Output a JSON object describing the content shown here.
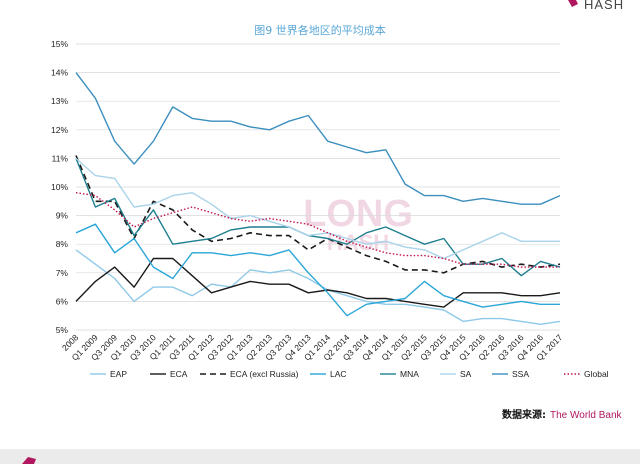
{
  "brand": {
    "logo_text": "HASH",
    "watermark_line1": "LONG",
    "watermark_line2": "HASH"
  },
  "source": {
    "label": "数据来源:",
    "value": "The World Bank"
  },
  "colors": {
    "EAP": "#8ec9e8",
    "ECA": "#1a1a1a",
    "ECA (excl Russia)": "#1a1a1a",
    "LAC": "#2aa6d8",
    "MNA": "#1e7f8f",
    "SA": "#a9d3ea",
    "SSA": "#3c8fbf",
    "Global": "#c0144f",
    "grid": "#d9d9d9",
    "title": "#5aa7d6",
    "accent": "#b0175f",
    "footer": "#ebebeb"
  },
  "chart_data": {
    "type": "line",
    "title": "图9 世界各地区的平均成本",
    "xlabel": "",
    "ylabel": "",
    "ylim": [
      5,
      15
    ],
    "y_ticks": [
      "5%",
      "6%",
      "7%",
      "8%",
      "9%",
      "10%",
      "11%",
      "12%",
      "13%",
      "14%",
      "15%"
    ],
    "grid": true,
    "legend_position": "bottom",
    "categories": [
      "2008",
      "Q1 2009",
      "Q3 2009",
      "Q1 2010",
      "Q3 2010",
      "Q1 2011",
      "Q3 2011",
      "Q1 2012",
      "Q3 2012",
      "Q1 2013",
      "Q2 2013",
      "Q3 2013",
      "Q4 2013",
      "Q1 2014",
      "Q2 2014",
      "Q3 2014",
      "Q4 2014",
      "Q1 2015",
      "Q2 2015",
      "Q3 2015",
      "Q4 2015",
      "Q1 2016",
      "Q2 2016",
      "Q3 2016",
      "Q4 2016",
      "Q1 2017"
    ],
    "series": [
      {
        "name": "EAP",
        "style": "solid",
        "values": [
          7.8,
          7.3,
          6.8,
          6.0,
          6.5,
          6.5,
          6.2,
          6.6,
          6.5,
          7.1,
          7.0,
          7.1,
          6.8,
          6.4,
          6.2,
          6.0,
          5.9,
          5.9,
          5.8,
          5.7,
          5.3,
          5.4,
          5.4,
          5.3,
          5.2,
          5.3
        ]
      },
      {
        "name": "ECA",
        "style": "solid",
        "values": [
          6.0,
          6.7,
          7.2,
          6.5,
          7.5,
          7.5,
          6.9,
          6.3,
          6.5,
          6.7,
          6.6,
          6.6,
          6.3,
          6.4,
          6.3,
          6.1,
          6.1,
          6.0,
          5.9,
          5.8,
          6.3,
          6.3,
          6.3,
          6.2,
          6.2,
          6.3
        ]
      },
      {
        "name": "ECA (excl Russia)",
        "style": "dashed",
        "values": [
          11.1,
          9.5,
          9.5,
          8.2,
          9.5,
          9.2,
          8.5,
          8.1,
          8.2,
          8.4,
          8.3,
          8.3,
          7.8,
          8.2,
          7.9,
          7.6,
          7.4,
          7.1,
          7.1,
          7.0,
          7.3,
          7.4,
          7.2,
          7.3,
          7.2,
          7.3
        ]
      },
      {
        "name": "LAC",
        "style": "solid",
        "values": [
          8.4,
          8.7,
          7.7,
          8.2,
          7.2,
          6.8,
          7.7,
          7.7,
          7.6,
          7.7,
          7.6,
          7.8,
          7.0,
          6.3,
          5.5,
          5.9,
          6.0,
          6.1,
          6.7,
          6.2,
          6.0,
          5.8,
          5.9,
          6.0,
          5.9,
          5.9
        ]
      },
      {
        "name": "MNA",
        "style": "solid",
        "values": [
          11.0,
          9.3,
          9.6,
          8.3,
          9.2,
          8.0,
          8.1,
          8.2,
          8.5,
          8.6,
          8.6,
          8.6,
          8.3,
          8.2,
          8.0,
          8.4,
          8.6,
          8.3,
          8.0,
          8.2,
          7.3,
          7.3,
          7.5,
          6.9,
          7.4,
          7.2
        ]
      },
      {
        "name": "SA",
        "style": "solid",
        "values": [
          11.0,
          10.4,
          10.3,
          9.3,
          9.4,
          9.7,
          9.8,
          9.4,
          8.9,
          9.0,
          8.8,
          8.6,
          8.3,
          8.4,
          8.2,
          8.0,
          8.1,
          7.9,
          7.8,
          7.5,
          7.8,
          8.1,
          8.4,
          8.1,
          8.1,
          8.1
        ]
      },
      {
        "name": "SSA",
        "style": "solid",
        "values": [
          14.0,
          13.1,
          11.6,
          10.8,
          11.6,
          12.8,
          12.4,
          12.3,
          12.3,
          12.1,
          12.0,
          12.3,
          12.5,
          11.6,
          11.4,
          11.2,
          11.3,
          10.1,
          9.7,
          9.7,
          9.5,
          9.6,
          9.5,
          9.4,
          9.4,
          9.7
        ]
      },
      {
        "name": "Global",
        "style": "dotted",
        "values": [
          9.8,
          9.7,
          9.2,
          8.6,
          8.9,
          9.1,
          9.3,
          9.1,
          8.9,
          8.8,
          8.9,
          8.8,
          8.7,
          8.4,
          8.1,
          7.9,
          7.7,
          7.6,
          7.6,
          7.5,
          7.3,
          7.3,
          7.3,
          7.2,
          7.2,
          7.2
        ]
      }
    ]
  }
}
